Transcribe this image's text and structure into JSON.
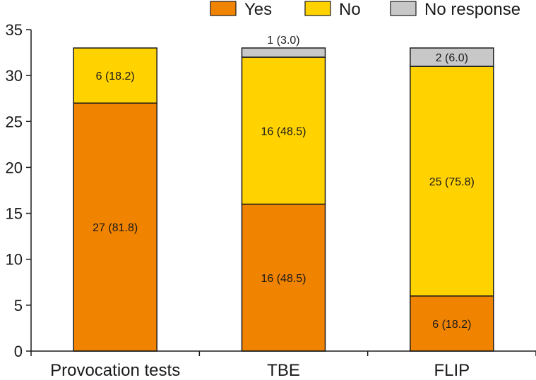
{
  "chart_data": {
    "type": "bar",
    "stacked": true,
    "title": "",
    "xlabel": "",
    "ylabel": "",
    "ylim": [
      0,
      35
    ],
    "yticks": [
      0,
      5,
      10,
      15,
      20,
      25,
      30,
      35
    ],
    "grid": false,
    "legend_position": "top-right",
    "categories": [
      "Provocation tests",
      "TBE",
      "FLIP"
    ],
    "series": [
      {
        "name": "Yes",
        "color": "#F08300",
        "values": [
          27,
          16,
          6
        ],
        "labels": [
          "27 (81.8)",
          "16 (48.5)",
          "6 (18.2)"
        ]
      },
      {
        "name": "No",
        "color": "#FFD200",
        "values": [
          6,
          16,
          25
        ],
        "labels": [
          "6 (18.2)",
          "16 (48.5)",
          "25 (75.8)"
        ]
      },
      {
        "name": "No response",
        "color": "#C8C8C8",
        "values": [
          0,
          1,
          2
        ],
        "labels": [
          "",
          "1 (3.0)",
          "2 (6.0)"
        ]
      }
    ]
  }
}
